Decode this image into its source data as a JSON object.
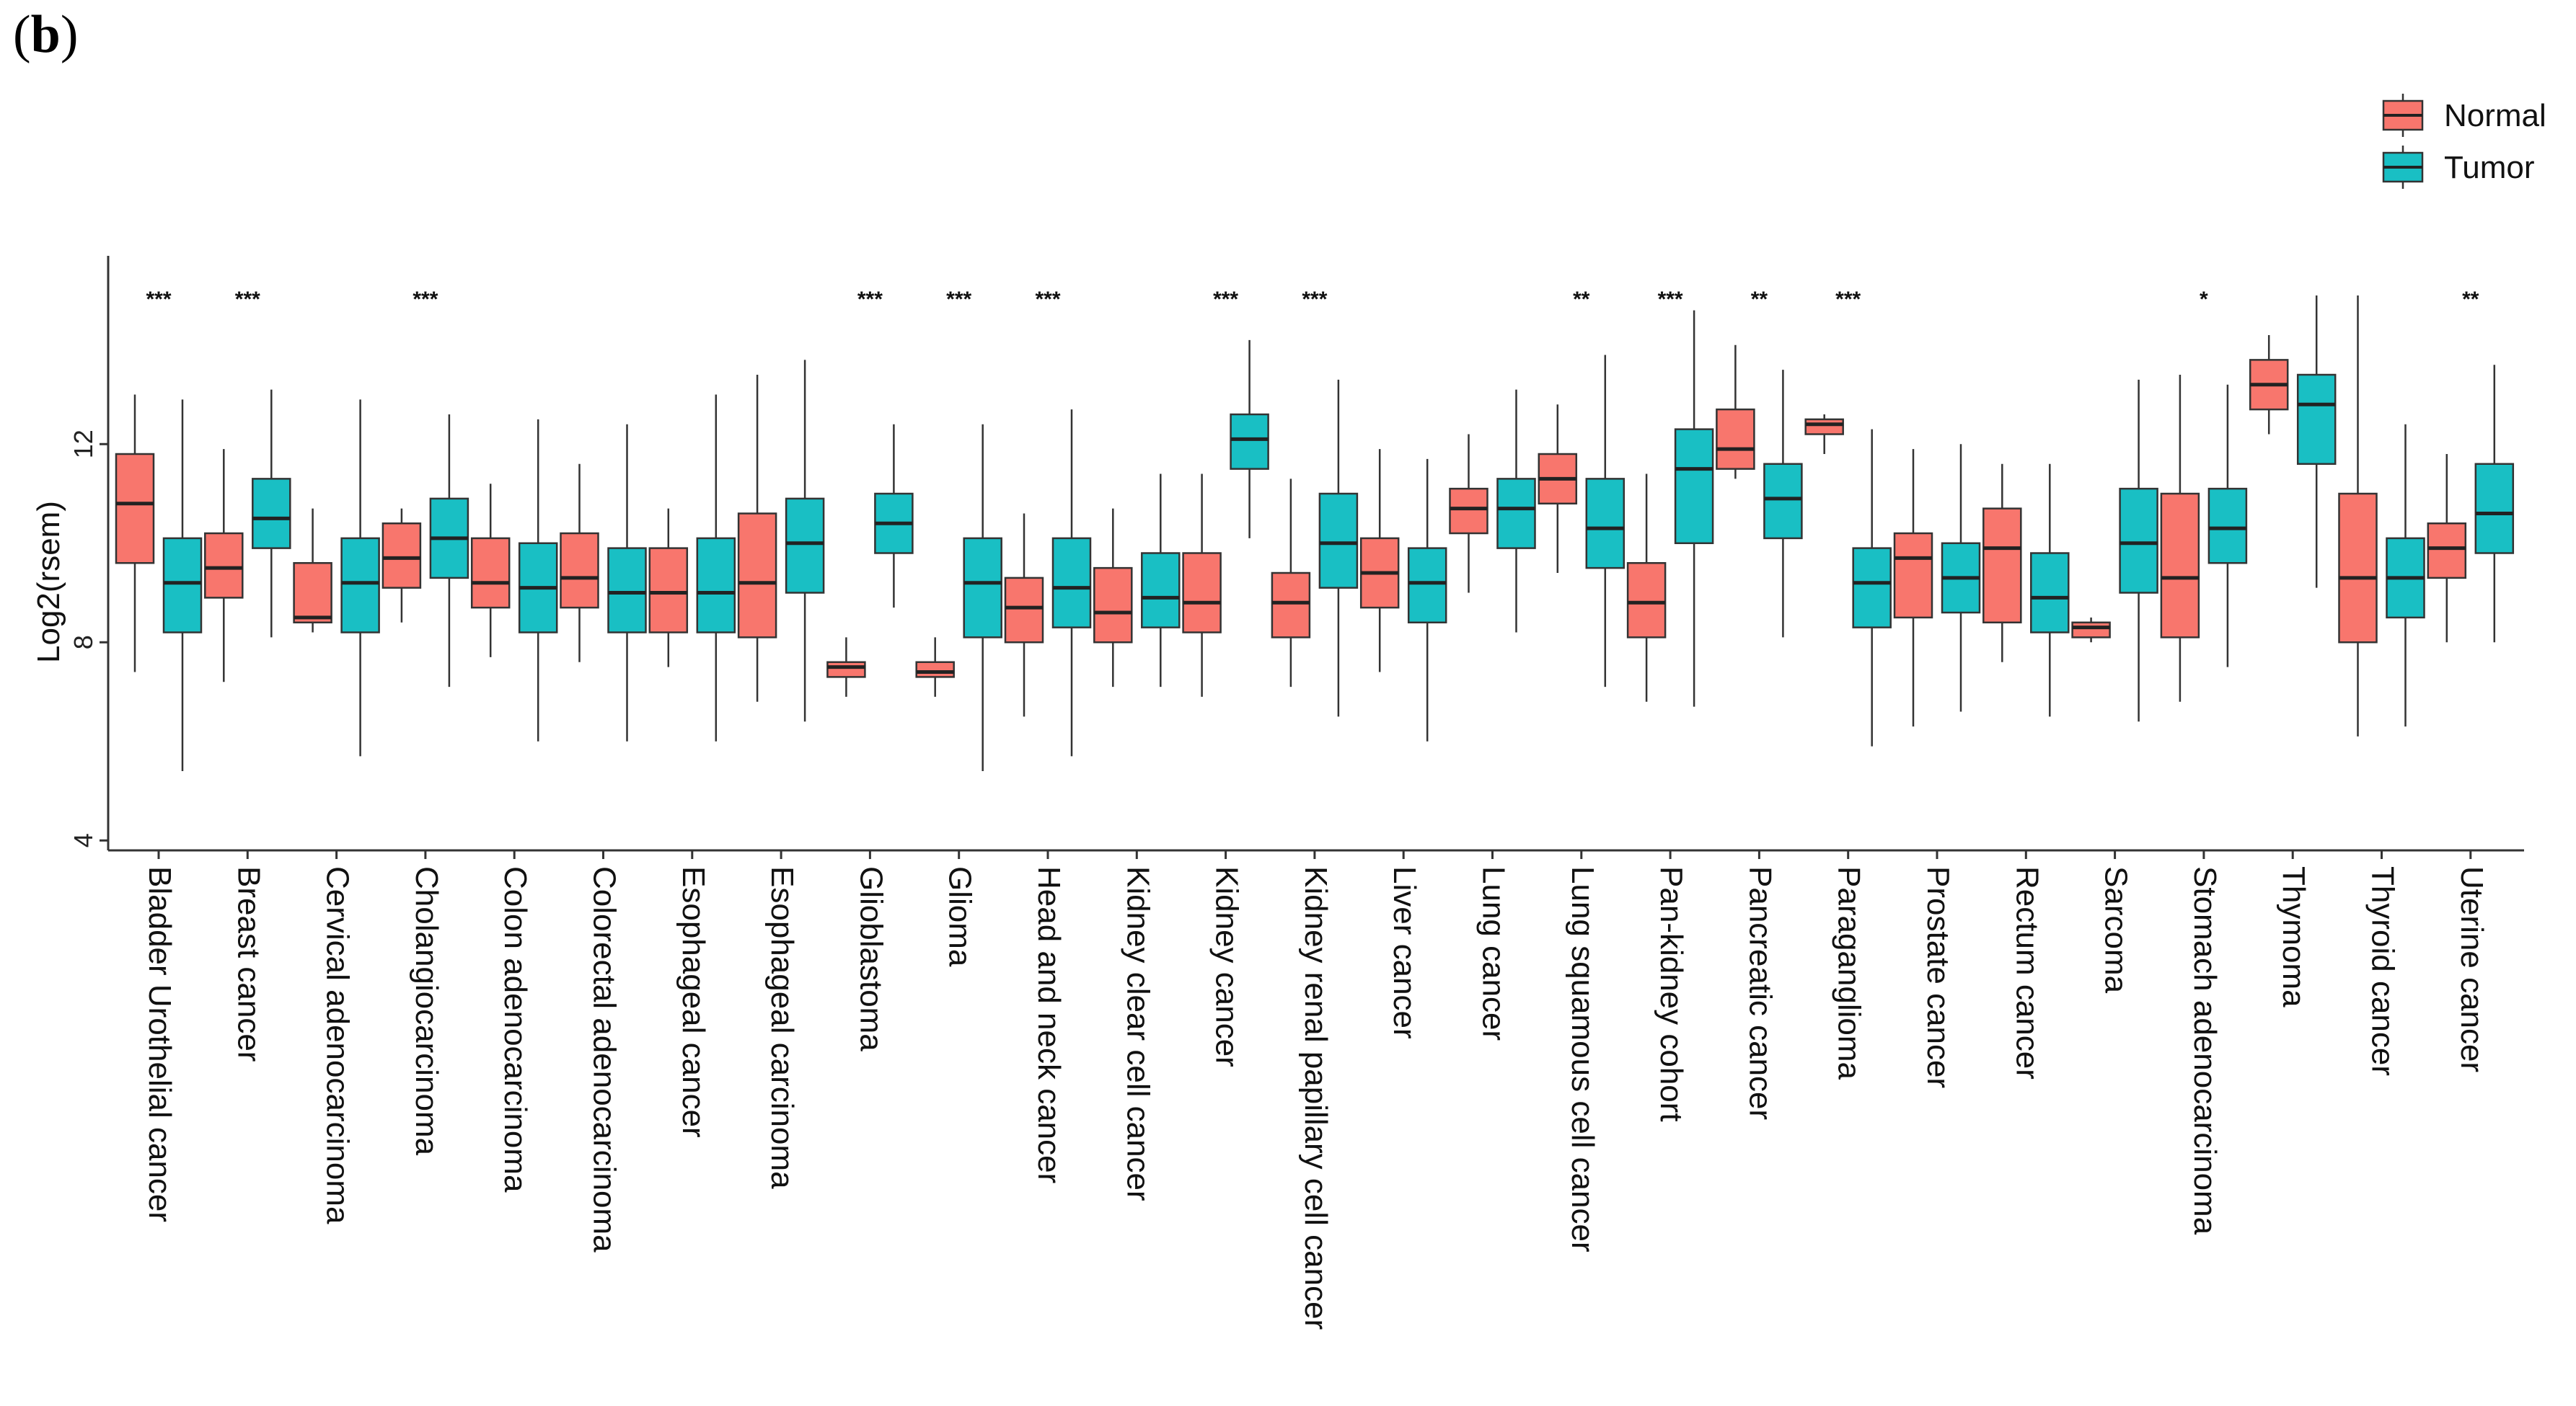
{
  "panel_label": {
    "open": "(",
    "letter": "b",
    "close": ")"
  },
  "chart_data": {
    "type": "boxplot",
    "title": "",
    "xlabel": "",
    "ylabel": "Log2(rsem)",
    "ylim": [
      3.8,
      15.8
    ],
    "yticks": [
      4,
      8,
      12
    ],
    "legend_position": "top-right",
    "colors": {
      "Normal": "#F8766D",
      "Tumor": "#19BFC4",
      "stroke": "#333333"
    },
    "legend": [
      "Normal",
      "Tumor"
    ],
    "categories": [
      "Bladder Urothelial cancer",
      "Breast cancer",
      "Cervical adenocarcinoma",
      "Cholangiocarcinoma",
      "Colon adenocarcinoma",
      "Colorectal adenocarcinoma",
      "Esophageal cancer",
      "Esophageal carcinoma",
      "Glioblastoma",
      "Glioma",
      "Head and neck cancer",
      "Kidney clear cell cancer",
      "Kidney cancer",
      "Kidney renal papillary cell cancer",
      "Liver cancer",
      "Lung cancer",
      "Lung squamous cell cancer",
      "Pan-kidney cohort",
      "Pancreatic cancer",
      "Paraganglioma",
      "Prostate cancer",
      "Rectum cancer",
      "Sarcoma",
      "Stomach adenocarcinoma",
      "Thymoma",
      "Thyroid cancer",
      "Uterine cancer"
    ],
    "significance": [
      "***",
      "***",
      "",
      "***",
      "",
      "",
      "",
      "",
      "***",
      "***",
      "***",
      "",
      "***",
      "***",
      "",
      "",
      "**",
      "***",
      "**",
      "***",
      "",
      "",
      "",
      "*",
      "",
      "",
      "**"
    ],
    "series": [
      {
        "name": "Normal",
        "boxes": [
          {
            "whislo": 7.4,
            "q1": 9.6,
            "med": 10.8,
            "q3": 11.8,
            "whishi": 13.0
          },
          {
            "whislo": 7.2,
            "q1": 8.9,
            "med": 9.5,
            "q3": 10.2,
            "whishi": 11.9
          },
          {
            "whislo": 8.2,
            "q1": 8.4,
            "med": 8.5,
            "q3": 9.6,
            "whishi": 10.7
          },
          {
            "whislo": 8.4,
            "q1": 9.1,
            "med": 9.7,
            "q3": 10.4,
            "whishi": 10.7
          },
          {
            "whislo": 7.7,
            "q1": 8.7,
            "med": 9.2,
            "q3": 10.1,
            "whishi": 11.2
          },
          {
            "whislo": 7.6,
            "q1": 8.7,
            "med": 9.3,
            "q3": 10.2,
            "whishi": 11.6
          },
          {
            "whislo": 7.5,
            "q1": 8.2,
            "med": 9.0,
            "q3": 9.9,
            "whishi": 10.7
          },
          {
            "whislo": 6.8,
            "q1": 8.1,
            "med": 9.2,
            "q3": 10.6,
            "whishi": 13.4
          },
          {
            "whislo": 6.9,
            "q1": 7.3,
            "med": 7.5,
            "q3": 7.6,
            "whishi": 8.1
          },
          {
            "whislo": 6.9,
            "q1": 7.3,
            "med": 7.4,
            "q3": 7.6,
            "whishi": 8.1
          },
          {
            "whislo": 6.5,
            "q1": 8.0,
            "med": 8.7,
            "q3": 9.3,
            "whishi": 10.6
          },
          {
            "whislo": 7.1,
            "q1": 8.0,
            "med": 8.6,
            "q3": 9.5,
            "whishi": 10.7
          },
          {
            "whislo": 6.9,
            "q1": 8.2,
            "med": 8.8,
            "q3": 9.8,
            "whishi": 11.4
          },
          {
            "whislo": 7.1,
            "q1": 8.1,
            "med": 8.8,
            "q3": 9.4,
            "whishi": 11.3
          },
          {
            "whislo": 7.4,
            "q1": 8.7,
            "med": 9.4,
            "q3": 10.1,
            "whishi": 11.9
          },
          {
            "whislo": 9.0,
            "q1": 10.2,
            "med": 10.7,
            "q3": 11.1,
            "whishi": 12.2
          },
          {
            "whislo": 9.4,
            "q1": 10.8,
            "med": 11.3,
            "q3": 11.8,
            "whishi": 12.8
          },
          {
            "whislo": 6.8,
            "q1": 8.1,
            "med": 8.8,
            "q3": 9.6,
            "whishi": 11.4
          },
          {
            "whislo": 11.3,
            "q1": 11.5,
            "med": 11.9,
            "q3": 12.7,
            "whishi": 14.0
          },
          {
            "whislo": 11.8,
            "q1": 12.2,
            "med": 12.4,
            "q3": 12.5,
            "whishi": 12.6
          },
          {
            "whislo": 6.3,
            "q1": 8.5,
            "med": 9.7,
            "q3": 10.2,
            "whishi": 11.9
          },
          {
            "whislo": 7.6,
            "q1": 8.4,
            "med": 9.9,
            "q3": 10.7,
            "whishi": 11.6
          },
          {
            "whislo": 8.0,
            "q1": 8.1,
            "med": 8.3,
            "q3": 8.4,
            "whishi": 8.5
          },
          {
            "whislo": 6.8,
            "q1": 8.1,
            "med": 9.3,
            "q3": 11.0,
            "whishi": 13.4
          },
          {
            "whislo": 12.2,
            "q1": 12.7,
            "med": 13.2,
            "q3": 13.7,
            "whishi": 14.2
          },
          {
            "whislo": 6.1,
            "q1": 8.0,
            "med": 9.3,
            "q3": 11.0,
            "whishi": 15.0
          },
          {
            "whislo": 8.0,
            "q1": 9.3,
            "med": 9.9,
            "q3": 10.4,
            "whishi": 11.8
          }
        ]
      },
      {
        "name": "Tumor",
        "boxes": [
          {
            "whislo": 5.4,
            "q1": 8.2,
            "med": 9.2,
            "q3": 10.1,
            "whishi": 12.9
          },
          {
            "whislo": 8.1,
            "q1": 9.9,
            "med": 10.5,
            "q3": 11.3,
            "whishi": 13.1
          },
          {
            "whislo": 5.7,
            "q1": 8.2,
            "med": 9.2,
            "q3": 10.1,
            "whishi": 12.9
          },
          {
            "whislo": 7.1,
            "q1": 9.3,
            "med": 10.1,
            "q3": 10.9,
            "whishi": 12.6
          },
          {
            "whislo": 6.0,
            "q1": 8.2,
            "med": 9.1,
            "q3": 10.0,
            "whishi": 12.5
          },
          {
            "whislo": 6.0,
            "q1": 8.2,
            "med": 9.0,
            "q3": 9.9,
            "whishi": 12.4
          },
          {
            "whislo": 6.0,
            "q1": 8.2,
            "med": 9.0,
            "q3": 10.1,
            "whishi": 13.0
          },
          {
            "whislo": 6.4,
            "q1": 9.0,
            "med": 10.0,
            "q3": 10.9,
            "whishi": 13.7
          },
          {
            "whislo": 8.7,
            "q1": 9.8,
            "med": 10.4,
            "q3": 11.0,
            "whishi": 12.4
          },
          {
            "whislo": 5.4,
            "q1": 8.1,
            "med": 9.2,
            "q3": 10.1,
            "whishi": 12.4
          },
          {
            "whislo": 5.7,
            "q1": 8.3,
            "med": 9.1,
            "q3": 10.1,
            "whishi": 12.7
          },
          {
            "whislo": 7.1,
            "q1": 8.3,
            "med": 8.9,
            "q3": 9.8,
            "whishi": 11.4
          },
          {
            "whislo": 10.1,
            "q1": 11.5,
            "med": 12.1,
            "q3": 12.6,
            "whishi": 14.1
          },
          {
            "whislo": 6.5,
            "q1": 9.1,
            "med": 10.0,
            "q3": 11.0,
            "whishi": 13.3
          },
          {
            "whislo": 6.0,
            "q1": 8.4,
            "med": 9.2,
            "q3": 9.9,
            "whishi": 11.7
          },
          {
            "whislo": 8.2,
            "q1": 9.9,
            "med": 10.7,
            "q3": 11.3,
            "whishi": 13.1
          },
          {
            "whislo": 7.1,
            "q1": 9.5,
            "med": 10.3,
            "q3": 11.3,
            "whishi": 13.8
          },
          {
            "whislo": 6.7,
            "q1": 10.0,
            "med": 11.5,
            "q3": 12.3,
            "whishi": 14.7
          },
          {
            "whislo": 8.1,
            "q1": 10.1,
            "med": 10.9,
            "q3": 11.6,
            "whishi": 13.5
          },
          {
            "whislo": 5.9,
            "q1": 8.3,
            "med": 9.2,
            "q3": 9.9,
            "whishi": 12.3
          },
          {
            "whislo": 6.6,
            "q1": 8.6,
            "med": 9.3,
            "q3": 10.0,
            "whishi": 12.0
          },
          {
            "whislo": 6.5,
            "q1": 8.2,
            "med": 8.9,
            "q3": 9.8,
            "whishi": 11.6
          },
          {
            "whislo": 6.4,
            "q1": 9.0,
            "med": 10.0,
            "q3": 11.1,
            "whishi": 13.3
          },
          {
            "whislo": 7.5,
            "q1": 9.6,
            "med": 10.3,
            "q3": 11.1,
            "whishi": 13.2
          },
          {
            "whislo": 9.1,
            "q1": 11.6,
            "med": 12.8,
            "q3": 13.4,
            "whishi": 15.0
          },
          {
            "whislo": 6.3,
            "q1": 8.5,
            "med": 9.3,
            "q3": 10.1,
            "whishi": 12.4
          },
          {
            "whislo": 8.0,
            "q1": 9.8,
            "med": 10.6,
            "q3": 11.6,
            "whishi": 13.6
          }
        ]
      }
    ]
  }
}
